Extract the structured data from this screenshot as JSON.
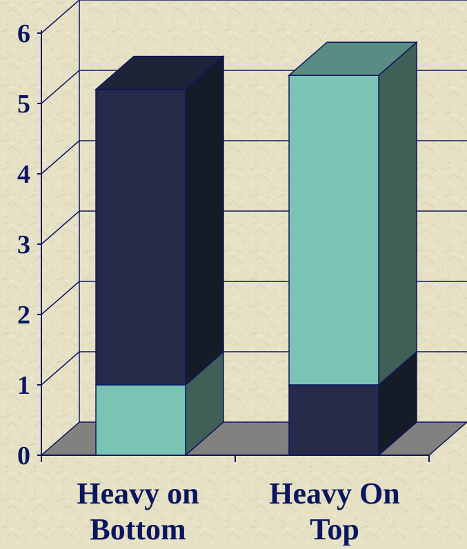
{
  "chart_data": {
    "type": "bar",
    "stacked": true,
    "three_d": true,
    "categories": [
      "Heavy on Bottom",
      "Heavy On Top"
    ],
    "category_lines": [
      [
        "Heavy on",
        "Bottom"
      ],
      [
        "Heavy On",
        "Top"
      ]
    ],
    "series": [
      {
        "values": [
          1,
          4.4
        ],
        "color": "#7ac4b5"
      },
      {
        "values": [
          4.2,
          1
        ],
        "color": "#262b4a"
      }
    ],
    "stack_order": [
      [
        "teal",
        "navy"
      ],
      [
        "navy",
        "teal"
      ]
    ],
    "y_ticks": [
      "0",
      "1",
      "2",
      "3",
      "4",
      "5",
      "6"
    ],
    "ylim": [
      0,
      6
    ],
    "grid": true,
    "legend": "none",
    "title": "",
    "xlabel": "",
    "ylabel": ""
  },
  "colors": {
    "background": "#e6e1c5",
    "text": "#0b1660",
    "grid": "#0b1660",
    "floor": "#838180",
    "teal_front": "#7ac4b5",
    "teal_top": "#5a8c84",
    "teal_side": "#3f5f57",
    "navy_front": "#262b4a",
    "navy_top": "#1f2338",
    "navy_side": "#161b28"
  }
}
